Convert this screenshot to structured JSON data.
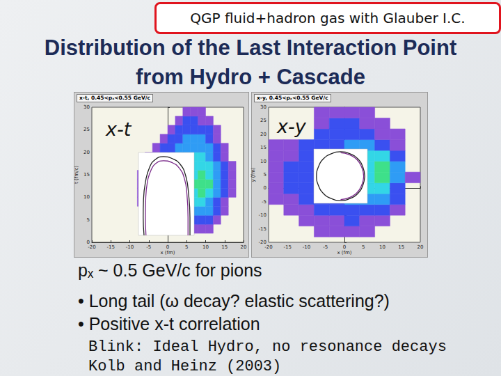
{
  "header": {
    "tag": "QGP fluid+hadron gas with Glauber I.C.",
    "title": "Distribution of the Last Interaction Point from Hydro + Cascade"
  },
  "chart_data": [
    {
      "type": "heatmap",
      "title": "x-t, 0.45<pₓ<0.55 GeV/c",
      "label": "x-t",
      "xlabel": "x (fm)",
      "ylabel": "t (fm/c)",
      "xlim": [
        -20,
        20
      ],
      "xticks": [
        -20,
        -15,
        -10,
        -5,
        0,
        5,
        10,
        15,
        20
      ],
      "ylim": [
        0,
        30
      ],
      "yticks": [
        0,
        5,
        10,
        15,
        20,
        25,
        30
      ],
      "x": [
        -7,
        -5,
        -3,
        -1,
        1,
        3,
        5,
        7,
        9,
        11,
        13,
        15,
        17
      ],
      "y": [
        1,
        3,
        5,
        7,
        9,
        11,
        13,
        15,
        17,
        19,
        21,
        23,
        25,
        27,
        29
      ],
      "cells": [
        [
          0,
          0,
          0,
          0,
          0,
          0,
          0,
          0,
          0,
          0,
          0,
          0,
          0
        ],
        [
          0,
          0,
          0,
          0,
          0,
          0,
          1,
          1,
          1,
          1,
          0,
          0,
          0
        ],
        [
          0,
          0,
          0,
          0,
          1,
          1,
          2,
          2,
          2,
          2,
          1,
          0,
          0
        ],
        [
          0,
          1,
          1,
          1,
          2,
          2,
          3,
          3,
          3,
          3,
          2,
          1,
          0
        ],
        [
          1,
          1,
          2,
          2,
          2,
          3,
          3,
          4,
          4,
          3,
          2,
          1,
          0
        ],
        [
          1,
          2,
          2,
          2,
          3,
          3,
          3,
          4,
          5,
          4,
          3,
          2,
          1
        ],
        [
          1,
          2,
          2,
          3,
          3,
          3,
          4,
          5,
          5,
          5,
          3,
          2,
          1
        ],
        [
          1,
          2,
          2,
          2,
          2,
          3,
          3,
          4,
          5,
          4,
          3,
          2,
          1
        ],
        [
          0,
          1,
          2,
          2,
          3,
          3,
          4,
          4,
          4,
          4,
          3,
          2,
          1
        ],
        [
          0,
          1,
          2,
          2,
          3,
          3,
          3,
          4,
          4,
          3,
          2,
          1,
          0
        ],
        [
          0,
          0,
          1,
          2,
          2,
          3,
          3,
          3,
          3,
          3,
          2,
          1,
          0
        ],
        [
          0,
          0,
          0,
          1,
          2,
          2,
          3,
          3,
          3,
          2,
          1,
          0,
          0
        ],
        [
          0,
          0,
          0,
          0,
          1,
          2,
          2,
          2,
          2,
          2,
          1,
          0,
          0
        ],
        [
          0,
          0,
          0,
          0,
          0,
          1,
          2,
          2,
          1,
          1,
          0,
          0,
          0
        ],
        [
          0,
          0,
          0,
          0,
          0,
          0,
          1,
          1,
          1,
          0,
          0,
          0,
          0
        ]
      ]
    },
    {
      "type": "line",
      "tick_labels": false,
      "xlim": [
        -10,
        10
      ],
      "ylim": [
        0,
        14
      ],
      "series": [
        {
          "color": "#222222",
          "values": [
            [
              -8,
              0
            ],
            [
              -8.3,
              3
            ],
            [
              -8.2,
              6
            ],
            [
              -7.5,
              9
            ],
            [
              -6,
              11.5
            ],
            [
              -4,
              12.8
            ],
            [
              -1,
              13.3
            ],
            [
              2,
              13
            ],
            [
              5,
              12
            ],
            [
              7,
              10
            ],
            [
              8,
              7
            ],
            [
              8.5,
              3
            ],
            [
              8.5,
              0
            ]
          ]
        },
        {
          "color": "#7a2a8a",
          "values": [
            [
              -7.3,
              0
            ],
            [
              -7.5,
              3
            ],
            [
              -7.4,
              6
            ],
            [
              -6.8,
              9
            ],
            [
              -5.5,
              11
            ],
            [
              -3.6,
              12.2
            ],
            [
              -1,
              12.6
            ],
            [
              2,
              12.3
            ],
            [
              4.6,
              11.4
            ],
            [
              6.5,
              9.6
            ],
            [
              7.4,
              7
            ],
            [
              7.8,
              3
            ],
            [
              7.8,
              0
            ]
          ]
        }
      ]
    },
    {
      "type": "heatmap",
      "title": "x-y, 0.45<pₓ<0.55 GeV/c",
      "label": "x-y",
      "xlabel": "x (fm)",
      "ylabel": "y (fm)",
      "xlim": [
        -20,
        20
      ],
      "xticks": [
        -20,
        -15,
        -10,
        -5,
        0,
        5,
        10,
        15,
        20
      ],
      "ylim": [
        -20,
        30
      ],
      "yticks": [
        -20,
        -15,
        -10,
        -5,
        0,
        5,
        10,
        15,
        20,
        25,
        30
      ],
      "x": [
        -18,
        -14,
        -10,
        -6,
        -2,
        2,
        6,
        10,
        14,
        18
      ],
      "y": [
        -16,
        -12,
        -8,
        -4,
        0,
        4,
        8,
        12,
        16,
        20,
        24,
        28
      ],
      "cells": [
        [
          0,
          0,
          0,
          1,
          1,
          1,
          1,
          0,
          0,
          0
        ],
        [
          0,
          0,
          1,
          1,
          1,
          2,
          1,
          1,
          0,
          0
        ],
        [
          0,
          1,
          1,
          2,
          2,
          2,
          2,
          2,
          1,
          0
        ],
        [
          1,
          1,
          2,
          2,
          2,
          3,
          3,
          3,
          2,
          0
        ],
        [
          1,
          2,
          2,
          2,
          2,
          3,
          4,
          4,
          2,
          0
        ],
        [
          1,
          2,
          2,
          2,
          3,
          3,
          4,
          5,
          3,
          1
        ],
        [
          1,
          2,
          2,
          2,
          3,
          3,
          4,
          5,
          3,
          0
        ],
        [
          1,
          1,
          2,
          2,
          3,
          3,
          4,
          4,
          2,
          0
        ],
        [
          1,
          1,
          2,
          2,
          2,
          3,
          3,
          2,
          1,
          0
        ],
        [
          0,
          0,
          0,
          2,
          2,
          2,
          2,
          1,
          1,
          0
        ],
        [
          0,
          0,
          0,
          1,
          2,
          2,
          1,
          1,
          0,
          0
        ],
        [
          0,
          0,
          0,
          1,
          1,
          1,
          1,
          0,
          0,
          0
        ]
      ]
    },
    {
      "type": "line",
      "tick_labels": false,
      "xlim": [
        -10,
        10
      ],
      "ylim": [
        -10,
        10
      ],
      "series": [
        {
          "color": "#222222",
          "values": [
            [
              9,
              0
            ],
            [
              8.3,
              3.4
            ],
            [
              6.4,
              6.4
            ],
            [
              3.4,
              8.3
            ],
            [
              0,
              9
            ],
            [
              -3.4,
              8.3
            ],
            [
              -6.4,
              6.4
            ],
            [
              -8.3,
              3.4
            ],
            [
              -9,
              0
            ],
            [
              -8.3,
              -3.4
            ],
            [
              -6.4,
              -6.4
            ],
            [
              -3.4,
              -8.3
            ],
            [
              0,
              -9
            ],
            [
              3.4,
              -8.3
            ],
            [
              6.4,
              -6.4
            ],
            [
              8.3,
              -3.4
            ],
            [
              9,
              0
            ]
          ]
        },
        {
          "color": "#7a2a8a",
          "values": [
            [
              0,
              8.6
            ],
            [
              3.2,
              7.9
            ],
            [
              6.1,
              6.1
            ],
            [
              7.9,
              3.2
            ],
            [
              8.6,
              0
            ],
            [
              7.9,
              -3.2
            ],
            [
              6.1,
              -6.1
            ],
            [
              3.2,
              -7.9
            ],
            [
              0,
              -8.6
            ]
          ]
        }
      ]
    }
  ],
  "bullets": [
    "pₓ ~ 0.5 GeV/c for pions",
    "• Long tail (ω decay? elastic scattering?)",
    "• Positive x-t correlation"
  ],
  "note": [
    "Blink: Ideal Hydro, no resonance decays",
    "Kolb and Heinz (2003)"
  ]
}
